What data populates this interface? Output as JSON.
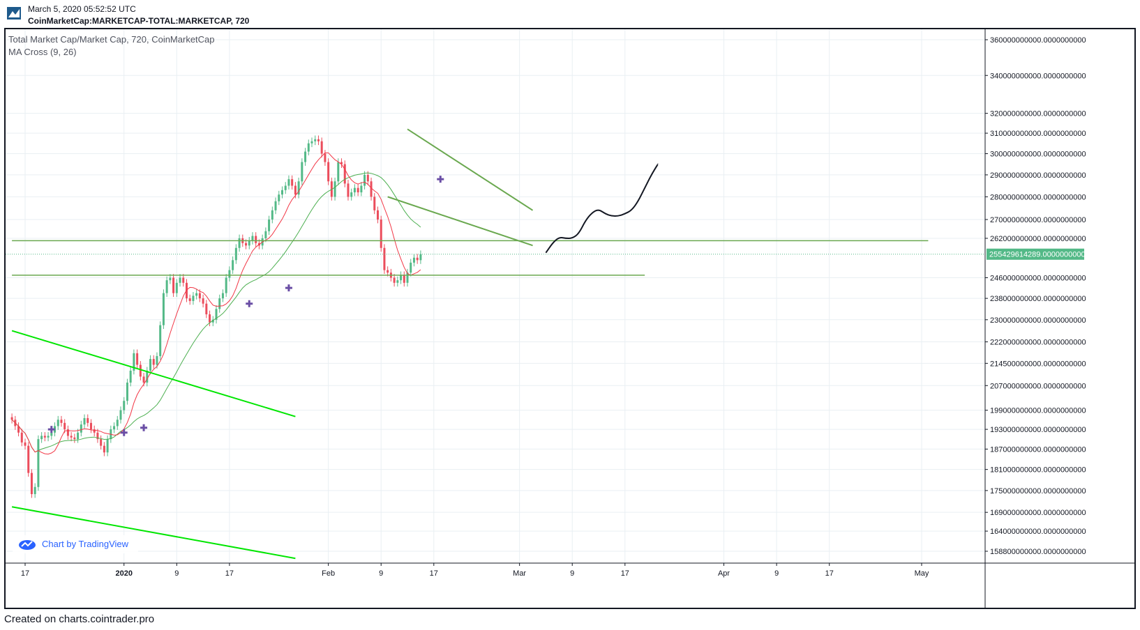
{
  "header": {
    "date": "March 5, 2020 05:52:52 UTC",
    "symbol": "CoinMarketCap:MARKETCAP-TOTAL:MARKETCAP, 720"
  },
  "legend": {
    "title": "Total Market Cap/Market Cap, 720, CoinMarketCap",
    "indicator": "MA Cross (9, 26)"
  },
  "badge": {
    "text": "Chart by TradingView"
  },
  "footer": {
    "text": "Created on charts.cointrader.pro"
  },
  "colors": {
    "up": "#53b987",
    "down": "#eb4d5c",
    "ma_fast": "#f23645",
    "ma_slow": "#4caf50",
    "level": "#6aa84f",
    "trend_green": "#00e600",
    "cross": "#6a4ea5",
    "projection": "#131722",
    "last_price_bg": "#53b987",
    "grid": "#e9eff3"
  },
  "chart_data": {
    "type": "line",
    "title": "Total Market Cap/Market Cap, 720, CoinMarketCap",
    "price_axis_labels": [
      "360000000000.0000000000",
      "340000000000.0000000000",
      "320000000000.0000000000",
      "310000000000.0000000000",
      "300000000000.0000000000",
      "290000000000.0000000000",
      "280000000000.0000000000",
      "270000000000.0000000000",
      "262000000000.0000000000",
      "246000000000.0000000000",
      "238000000000.0000000000",
      "230000000000.0000000000",
      "222000000000.0000000000",
      "214500000000.0000000000",
      "207000000000.0000000000",
      "199000000000.0000000000",
      "193000000000.0000000000",
      "187000000000.0000000000",
      "181000000000.0000000000",
      "175000000000.0000000000",
      "169000000000.0000000000",
      "164000000000.0000000000",
      "158800000000.0000000000"
    ],
    "price_axis_values": [
      360000000000,
      340000000000,
      320000000000,
      310000000000,
      300000000000,
      290000000000,
      280000000000,
      270000000000,
      262000000000,
      246000000000,
      238000000000,
      230000000000,
      222000000000,
      214500000000,
      207000000000,
      199000000000,
      193000000000,
      187000000000,
      181000000000,
      175000000000,
      169000000000,
      164000000000,
      158800000000
    ],
    "time_axis_labels": [
      "17",
      "2020",
      "9",
      "17",
      "Feb",
      "9",
      "17",
      "Mar",
      "9",
      "17",
      "Apr",
      "9",
      "17",
      "May"
    ],
    "time_axis_dates": [
      "2019-12-17",
      "2020-01-01",
      "2020-01-09",
      "2020-01-17",
      "2020-02-01",
      "2020-02-09",
      "2020-02-17",
      "2020-03-01",
      "2020-03-09",
      "2020-03-17",
      "2020-04-01",
      "2020-04-09",
      "2020-04-17",
      "2020-05-01"
    ],
    "last_price": "255429614289.0000000000",
    "last_price_value": 255429614289,
    "close_series": {
      "interval": "12h",
      "start": "2019-12-15",
      "values": [
        196000000000,
        194000000000,
        192000000000,
        189000000000,
        188000000000,
        180000000000,
        174000000000,
        176000000000,
        190000000000,
        191000000000,
        190500000000,
        191000000000,
        192000000000,
        194000000000,
        196000000000,
        195000000000,
        193000000000,
        191000000000,
        190500000000,
        190000000000,
        192000000000,
        194500000000,
        196500000000,
        195000000000,
        193000000000,
        192000000000,
        190000000000,
        188000000000,
        186000000000,
        190000000000,
        193000000000,
        194000000000,
        196000000000,
        199000000000,
        202000000000,
        208000000000,
        212000000000,
        218000000000,
        214000000000,
        210000000000,
        208000000000,
        212000000000,
        216000000000,
        214000000000,
        217000000000,
        228000000000,
        240000000000,
        245000000000,
        246000000000,
        240000000000,
        244000000000,
        246000000000,
        244000000000,
        238000000000,
        237000000000,
        239000000000,
        240000000000,
        238000000000,
        236000000000,
        232000000000,
        229000000000,
        230000000000,
        234000000000,
        238000000000,
        240000000000,
        246000000000,
        249000000000,
        253000000000,
        258000000000,
        262000000000,
        260000000000,
        259000000000,
        261000000000,
        263000000000,
        260000000000,
        259000000000,
        262000000000,
        265000000000,
        270000000000,
        274000000000,
        278000000000,
        281000000000,
        283000000000,
        285000000000,
        288000000000,
        285000000000,
        281000000000,
        287000000000,
        296000000000,
        301000000000,
        305000000000,
        306000000000,
        307000000000,
        306000000000,
        300000000000,
        296000000000,
        287000000000,
        280000000000,
        287000000000,
        296000000000,
        295000000000,
        286000000000,
        280000000000,
        282000000000,
        284000000000,
        282000000000,
        285000000000,
        290000000000,
        287000000000,
        280000000000,
        274000000000,
        270000000000,
        258000000000,
        249000000000,
        248000000000,
        246000000000,
        244000000000,
        245000000000,
        247000000000,
        244000000000,
        248000000000,
        252000000000,
        254000000000,
        253000000000,
        255429614289
      ]
    },
    "series": [
      {
        "name": "MA Cross (9, 26)",
        "values": "9-period moving average of close"
      },
      {
        "name": "MA Cross (9, 26)",
        "values": "26-period moving average of close"
      }
    ],
    "cross_points": [
      {
        "date": "2019-12-21",
        "value": 193000000000
      },
      {
        "date": "2020-01-01",
        "value": 192000000000
      },
      {
        "date": "2020-01-04",
        "value": 193500000000
      },
      {
        "date": "2020-01-20",
        "value": 236000000000
      },
      {
        "date": "2020-01-26",
        "value": 242000000000
      },
      {
        "date": "2020-02-18",
        "value": 288000000000
      }
    ],
    "horizontal_levels": [
      {
        "value": 261000000000,
        "from": "2019-12-15",
        "to": "2020-05-02"
      },
      {
        "value": 247000000000,
        "from": "2019-12-15",
        "to": "2020-03-20"
      }
    ],
    "trend_lines": [
      {
        "color": "level",
        "points": [
          [
            "2020-02-13",
            312000000000
          ],
          [
            "2020-03-03",
            274000000000
          ]
        ]
      },
      {
        "color": "level",
        "points": [
          [
            "2020-02-10",
            280000000000
          ],
          [
            "2020-03-03",
            259000000000
          ]
        ]
      },
      {
        "color": "trend_green",
        "points": [
          [
            "2019-12-15",
            226000000000
          ],
          [
            "2020-01-27",
            197000000000
          ]
        ]
      },
      {
        "color": "trend_green",
        "points": [
          [
            "2019-12-15",
            170500000000
          ],
          [
            "2020-01-27",
            157000000000
          ]
        ]
      }
    ],
    "projection_path": [
      [
        "2020-03-05",
        256000000000
      ],
      [
        "2020-03-06",
        260000000000
      ],
      [
        "2020-03-07",
        262500000000
      ],
      [
        "2020-03-08",
        262000000000
      ],
      [
        "2020-03-09",
        262000000000
      ],
      [
        "2020-03-10",
        264000000000
      ],
      [
        "2020-03-11",
        269500000000
      ],
      [
        "2020-03-12",
        273000000000
      ],
      [
        "2020-03-13",
        274500000000
      ],
      [
        "2020-03-14",
        272500000000
      ],
      [
        "2020-03-15",
        271500000000
      ],
      [
        "2020-03-16",
        271500000000
      ],
      [
        "2020-03-17",
        272500000000
      ],
      [
        "2020-03-18",
        274000000000
      ],
      [
        "2020-03-19",
        278000000000
      ],
      [
        "2020-03-20",
        284000000000
      ],
      [
        "2020-03-21",
        290000000000
      ],
      [
        "2020-03-22",
        295000000000
      ]
    ],
    "grid": true,
    "log_scale": true
  }
}
